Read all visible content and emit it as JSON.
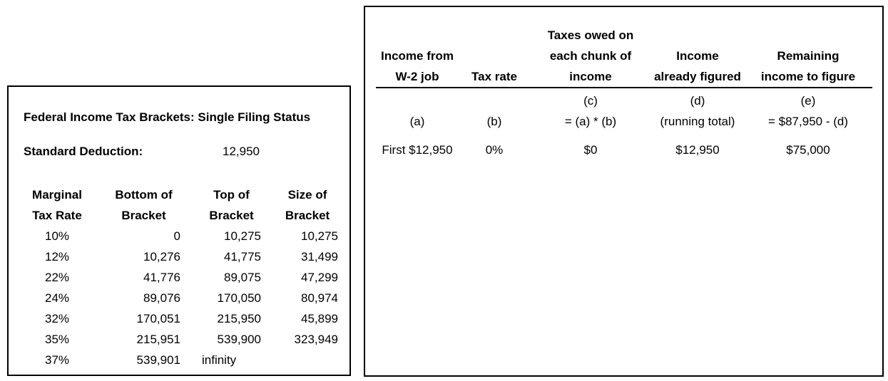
{
  "left_panel": {
    "title": "Federal Income Tax Brackets: Single Filing Status",
    "standard_deduction": {
      "label": "Standard Deduction:",
      "value": "12,950"
    },
    "bracket_table": {
      "col_headers": [
        {
          "line1": "Marginal",
          "line2": "Tax Rate"
        },
        {
          "line1": "Bottom of",
          "line2": "Bracket"
        },
        {
          "line1": "Top of",
          "line2": "Bracket"
        },
        {
          "line1": "Size of",
          "line2": "Bracket"
        }
      ],
      "rows": [
        {
          "rate": "10%",
          "bottom": "0",
          "top": "10,275",
          "size": "10,275"
        },
        {
          "rate": "12%",
          "bottom": "10,276",
          "top": "41,775",
          "size": "31,499"
        },
        {
          "rate": "22%",
          "bottom": "41,776",
          "top": "89,075",
          "size": "47,299"
        },
        {
          "rate": "24%",
          "bottom": "89,076",
          "top": "170,050",
          "size": "80,974"
        },
        {
          "rate": "32%",
          "bottom": "170,051",
          "top": "215,950",
          "size": "45,899"
        },
        {
          "rate": "35%",
          "bottom": "215,951",
          "top": "539,900",
          "size": "323,949"
        },
        {
          "rate": "37%",
          "bottom": "539,901",
          "top": "infinity",
          "size": ""
        }
      ]
    }
  },
  "right_panel": {
    "worksheet_table": {
      "columns": [
        {
          "header": [
            "Income from",
            "W-2 job"
          ],
          "sub": [
            "",
            "(a)"
          ]
        },
        {
          "header": [
            "Tax rate"
          ],
          "sub": [
            "",
            "(b)"
          ]
        },
        {
          "header": [
            "Taxes owed on",
            "each chunk of",
            "income"
          ],
          "sub": [
            "(c)",
            "= (a) * (b)"
          ]
        },
        {
          "header": [
            "Income",
            "already figured"
          ],
          "sub": [
            "(d)",
            "(running total)"
          ]
        },
        {
          "header": [
            "Remaining",
            "income to figure"
          ],
          "sub": [
            "(e)",
            "= $87,950 - (d)"
          ]
        }
      ],
      "data_rows": [
        [
          "First $12,950",
          "0%",
          "$0",
          "$12,950",
          "$75,000"
        ]
      ]
    }
  }
}
